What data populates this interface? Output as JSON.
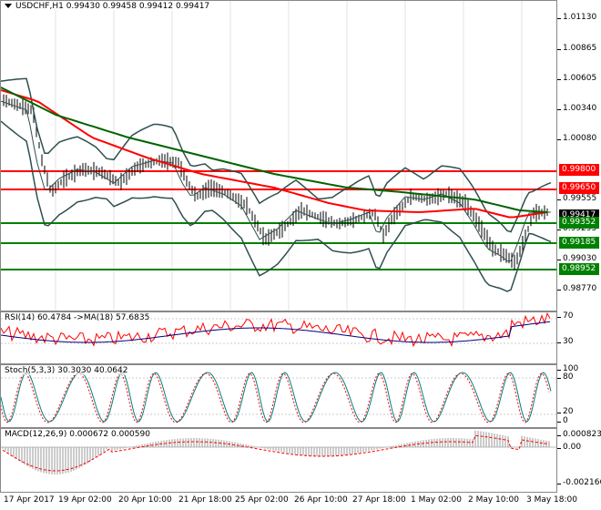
{
  "main": {
    "title": "USDCHF,H1",
    "ohlc": "0.99430 0.99458 0.99412 0.99417",
    "price_ticks": [
      "1.01130",
      "1.00865",
      "1.00605",
      "1.00340",
      "1.00080",
      "0.99555",
      "0.99295",
      "0.99030",
      "0.98770"
    ],
    "levels": [
      {
        "value": "0.99800",
        "color": "#ff0000"
      },
      {
        "value": "0.99650",
        "color": "#ff0000"
      },
      {
        "value": "0.99352",
        "color": "#008000"
      },
      {
        "value": "0.99185",
        "color": "#008000"
      },
      {
        "value": "0.98952",
        "color": "#008000"
      }
    ],
    "current_price": "0.99417"
  },
  "rsi": {
    "title": "RSI(14) 60.4784 ->MA(18) 57.6835",
    "ticks": [
      "70",
      "30"
    ]
  },
  "stoch": {
    "title": "Stoch(5,3,3) 30.3030 40.0642",
    "ticks": [
      "100",
      "80",
      "20",
      "0"
    ]
  },
  "macd": {
    "title": "MACD(12,26,9) 0.000672 0.000590",
    "ticks": [
      "0.000823",
      "0.00",
      "-0.002166"
    ]
  },
  "time_axis": [
    "17 Apr 2017",
    "19 Apr 02:00",
    "20 Apr 10:00",
    "21 Apr 18:00",
    "25 Apr 02:00",
    "26 Apr 10:00",
    "27 Apr 18:00",
    "1 May 02:00",
    "2 May 10:00",
    "3 May 18:00"
  ],
  "colors": {
    "price": "#000000",
    "bollinger": "#2f4f4f",
    "ma_red": "#ff0000",
    "ma_green": "#006400",
    "rsi_line": "#ff0000",
    "rsi_ma": "#000080",
    "stoch_main": "#008080",
    "stoch_signal": "#ff0000"
  }
}
